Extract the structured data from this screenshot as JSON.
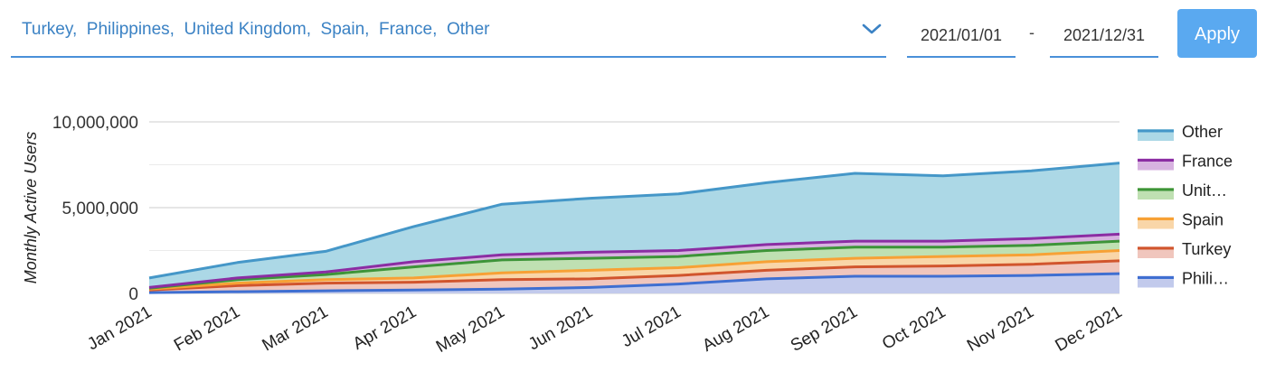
{
  "filters": {
    "countries_value": "Turkey,  Philippines,  United Kingdom,  Spain,  France,  Other",
    "start_date": "2021/01/01",
    "separator": "-",
    "end_date": "2021/12/31",
    "apply_label": "Apply"
  },
  "colors": {
    "accent": "#4a90d9",
    "apply_button": "#5aa9f0"
  },
  "chart_data": {
    "type": "area",
    "stacked": true,
    "title": "",
    "xlabel": "",
    "ylabel": "Monthly Active Users",
    "ylim": [
      0,
      10000000
    ],
    "y_ticks": [
      0,
      5000000,
      10000000
    ],
    "y_tick_labels": [
      "0",
      "5,000,000",
      "10,000,000"
    ],
    "grid": true,
    "legend_position": "right",
    "categories": [
      "Jan 2021",
      "Feb 2021",
      "Mar 2021",
      "Apr 2021",
      "May 2021",
      "Jun 2021",
      "Jul 2021",
      "Aug 2021",
      "Sep 2021",
      "Oct 2021",
      "Nov 2021",
      "Dec 2021"
    ],
    "series": [
      {
        "name": "Philippines",
        "legend_label": "Phili…",
        "line_color": "#3f6fd1",
        "fill_color": "#c2caec",
        "values": [
          50000,
          100000,
          150000,
          200000,
          250000,
          350000,
          550000,
          850000,
          1000000,
          1000000,
          1050000,
          1150000
        ]
      },
      {
        "name": "Turkey",
        "legend_label": "Turkey",
        "line_color": "#d1552d",
        "fill_color": "#f0c6bd",
        "values": [
          150000,
          350000,
          450000,
          450000,
          550000,
          500000,
          500000,
          500000,
          550000,
          600000,
          650000,
          750000
        ]
      },
      {
        "name": "Spain",
        "legend_label": "Spain",
        "line_color": "#f7a135",
        "fill_color": "#f9d6a8",
        "values": [
          50000,
          150000,
          200000,
          250000,
          400000,
          500000,
          450000,
          500000,
          500000,
          550000,
          550000,
          600000
        ]
      },
      {
        "name": "United Kingdom",
        "legend_label": "Unit…",
        "line_color": "#3d9438",
        "fill_color": "#bfe0b2",
        "values": [
          50000,
          200000,
          300000,
          650000,
          750000,
          700000,
          650000,
          650000,
          650000,
          550000,
          550000,
          550000
        ]
      },
      {
        "name": "France",
        "legend_label": "France",
        "line_color": "#8b2da3",
        "fill_color": "#d7b2e0",
        "values": [
          50000,
          100000,
          150000,
          300000,
          300000,
          350000,
          350000,
          350000,
          350000,
          350000,
          400000,
          400000
        ]
      },
      {
        "name": "Other",
        "legend_label": "Other",
        "line_color": "#4597c8",
        "fill_color": "#acd8e6",
        "values": [
          550000,
          900000,
          1200000,
          2050000,
          2950000,
          3150000,
          3300000,
          3600000,
          3950000,
          3800000,
          3950000,
          4150000
        ]
      }
    ]
  }
}
